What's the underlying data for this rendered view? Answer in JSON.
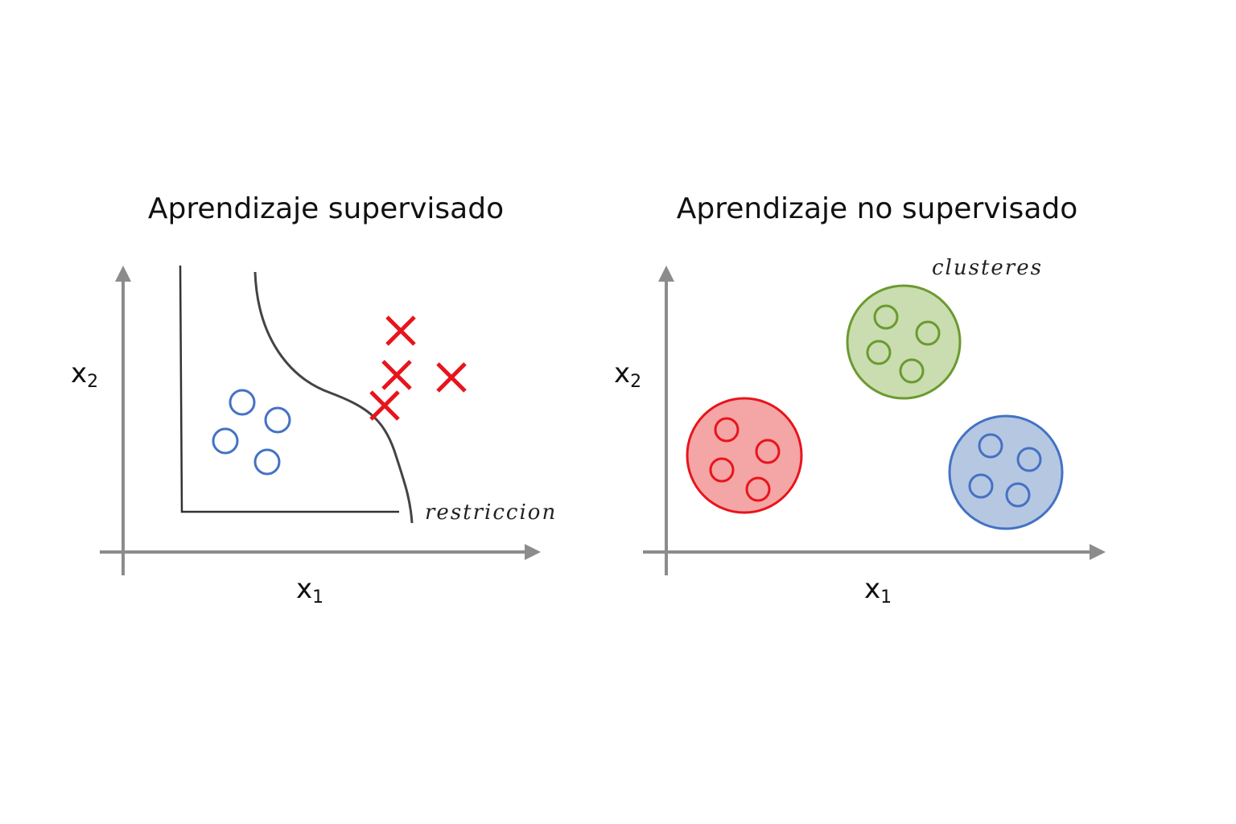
{
  "left_panel": {
    "title": "Aprendizaje supervisado",
    "x_axis_var": "x",
    "x_axis_sub": "1",
    "y_axis_var": "x",
    "y_axis_sub": "2",
    "boundary_label": "restriccion",
    "class_o_color": "#4472c4",
    "class_x_color": "#e8141c",
    "class_o_count": 4,
    "class_x_count": 4
  },
  "right_panel": {
    "title": "Aprendizaje no supervisado",
    "x_axis_var": "x",
    "x_axis_sub": "1",
    "y_axis_var": "x",
    "y_axis_sub": "2",
    "cluster_label": "clusteres",
    "clusters": [
      {
        "name": "red-cluster",
        "stroke": "#e8141c",
        "fill": "#f4a5a5",
        "points": 4
      },
      {
        "name": "green-cluster",
        "stroke": "#6b9a2f",
        "fill": "#c9ddb0",
        "points": 4
      },
      {
        "name": "blue-cluster",
        "stroke": "#4472c4",
        "fill": "#b6c7e2",
        "points": 4
      }
    ]
  },
  "axis_color": "#8c8c8c"
}
